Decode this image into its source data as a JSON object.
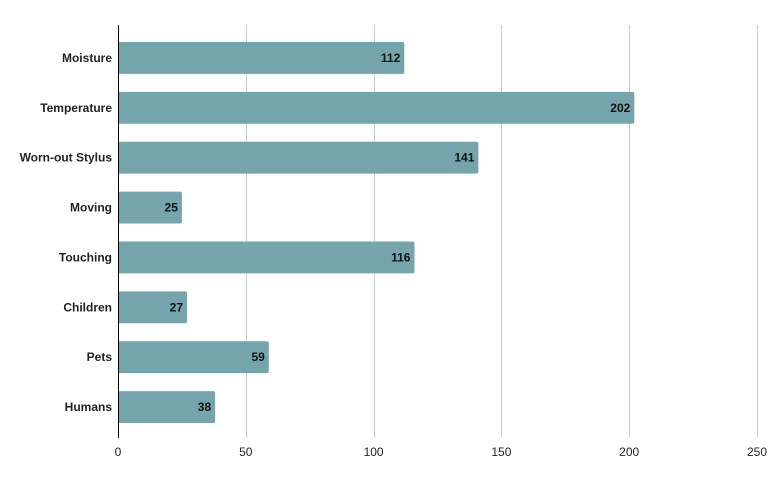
{
  "chart_data": {
    "type": "bar",
    "orientation": "horizontal",
    "categories": [
      "Moisture",
      "Temperature",
      "Worn-out Stylus",
      "Moving",
      "Touching",
      "Children",
      "Pets",
      "Humans"
    ],
    "values": [
      112,
      202,
      141,
      25,
      116,
      27,
      59,
      38
    ],
    "xlim": [
      0,
      250
    ],
    "xticks": [
      0,
      50,
      100,
      150,
      200,
      250
    ],
    "title": "",
    "xlabel": "",
    "ylabel": "",
    "grid": "vertical",
    "data_labels": "inside-end",
    "colors": {
      "bar": "#76A4AD",
      "grid": "#cccccc",
      "axis": "#000000"
    }
  }
}
